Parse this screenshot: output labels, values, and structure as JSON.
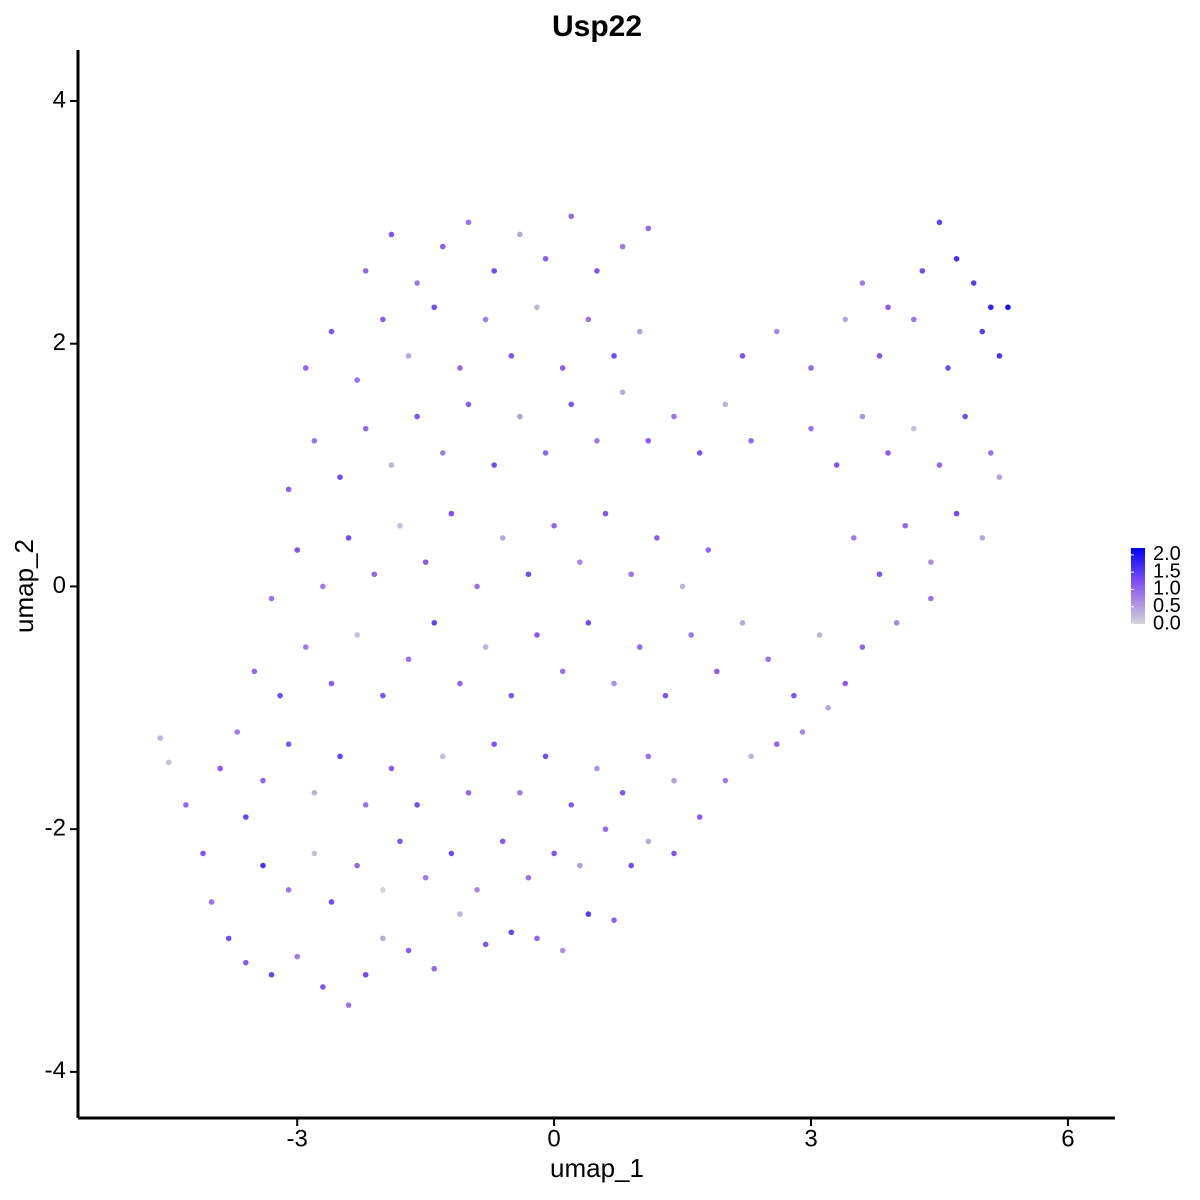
{
  "chart_data": {
    "type": "scatter",
    "title": "Usp22",
    "x_label": "umap_1",
    "y_label": "umap_2",
    "xlim": [
      -5.56,
      6.55
    ],
    "ylim": [
      -4.38,
      4.42
    ],
    "xticks": [
      -3,
      0,
      3,
      6
    ],
    "yticks": [
      -4,
      -2,
      0,
      2,
      4
    ],
    "color_scale": [
      "#d3d3d3",
      "#8c5cf2",
      "#0000ff"
    ],
    "clim": [
      0,
      2.2
    ],
    "colorbar_ticks": [
      {
        "value": 0,
        "label": "0.0"
      },
      {
        "value": 0.5,
        "label": "0.5"
      },
      {
        "value": 1,
        "label": "1.0"
      },
      {
        "value": 1.5,
        "label": "1.5"
      },
      {
        "value": 2,
        "label": "2.0"
      }
    ],
    "x": [
      -4.6,
      -4.5,
      -4.3,
      -4.1,
      -4.0,
      -3.8,
      -3.6,
      -3.3,
      -3.0,
      -2.7,
      -2.4,
      -2.2,
      -2.0,
      -1.7,
      -1.4,
      -1.1,
      -0.8,
      -0.5,
      -0.2,
      0.1,
      0.4,
      0.7,
      -3.9,
      -3.6,
      -3.4,
      -3.1,
      -2.8,
      -2.6,
      -2.3,
      -2.0,
      -1.8,
      -1.5,
      -1.2,
      -0.9,
      -0.6,
      -0.3,
      0.0,
      0.3,
      0.6,
      0.9,
      1.1,
      1.4,
      -3.7,
      -3.4,
      -3.1,
      -2.8,
      -2.5,
      -2.2,
      -1.9,
      -1.6,
      -1.3,
      -1.0,
      -0.7,
      -0.4,
      -0.1,
      0.2,
      0.5,
      0.8,
      1.1,
      1.4,
      1.7,
      2.0,
      2.3,
      2.6,
      2.9,
      3.2,
      3.4,
      -3.5,
      -3.2,
      -2.9,
      -2.6,
      -2.3,
      -2.0,
      -1.7,
      -1.4,
      -1.1,
      -0.8,
      -0.5,
      -0.2,
      0.1,
      0.4,
      0.7,
      1.0,
      1.3,
      1.6,
      1.9,
      2.2,
      2.5,
      2.8,
      3.1,
      3.6,
      4.0,
      4.4,
      -3.3,
      -3.0,
      -2.7,
      -2.4,
      -2.1,
      -1.8,
      -1.5,
      -1.2,
      -0.9,
      -0.6,
      -0.3,
      0.0,
      0.3,
      0.6,
      0.9,
      1.2,
      1.5,
      1.8,
      3.5,
      3.8,
      4.1,
      4.4,
      4.7,
      5.0,
      5.2,
      -3.1,
      -2.8,
      -2.5,
      -2.2,
      -1.9,
      -1.6,
      -1.3,
      -1.0,
      -0.7,
      -0.4,
      -0.1,
      0.2,
      0.5,
      0.8,
      1.1,
      1.4,
      1.7,
      2.0,
      2.3,
      3.0,
      3.3,
      3.6,
      3.9,
      4.2,
      4.5,
      4.8,
      5.1,
      -2.9,
      -2.6,
      -2.3,
      -2.0,
      -1.7,
      -1.4,
      -1.1,
      -0.8,
      -0.5,
      -0.2,
      0.1,
      0.4,
      0.7,
      1.0,
      2.2,
      2.6,
      3.0,
      3.4,
      3.8,
      4.2,
      4.6,
      5.0,
      5.3,
      5.2,
      -2.2,
      -1.9,
      -1.6,
      -1.3,
      -1.0,
      -0.7,
      -0.4,
      -0.1,
      0.2,
      0.5,
      0.8,
      1.1,
      3.6,
      3.9,
      4.3,
      4.5,
      4.7,
      4.9,
      5.1
    ],
    "y": [
      -1.25,
      -1.45,
      -1.8,
      -2.2,
      -2.6,
      -2.9,
      -3.1,
      -3.2,
      -3.05,
      -3.3,
      -3.45,
      -3.2,
      -2.9,
      -3.0,
      -3.15,
      -2.7,
      -2.95,
      -2.85,
      -2.9,
      -3.0,
      -2.7,
      -2.75,
      -1.5,
      -1.9,
      -2.3,
      -2.5,
      -2.2,
      -2.6,
      -2.3,
      -2.5,
      -2.1,
      -2.4,
      -2.2,
      -2.5,
      -2.1,
      -2.4,
      -2.2,
      -2.3,
      -2.0,
      -2.3,
      -2.1,
      -2.2,
      -1.2,
      -1.6,
      -1.3,
      -1.7,
      -1.4,
      -1.8,
      -1.5,
      -1.8,
      -1.4,
      -1.7,
      -1.3,
      -1.7,
      -1.4,
      -1.8,
      -1.5,
      -1.7,
      -1.4,
      -1.6,
      -1.9,
      -1.6,
      -1.4,
      -1.3,
      -1.2,
      -1.0,
      -0.8,
      -0.7,
      -0.9,
      -0.5,
      -0.8,
      -0.4,
      -0.9,
      -0.6,
      -0.3,
      -0.8,
      -0.5,
      -0.9,
      -0.4,
      -0.7,
      -0.3,
      -0.8,
      -0.5,
      -0.9,
      -0.4,
      -0.7,
      -0.3,
      -0.6,
      -0.9,
      -0.4,
      -0.5,
      -0.3,
      -0.1,
      -0.1,
      0.3,
      0.0,
      0.4,
      0.1,
      0.5,
      0.2,
      0.6,
      0.0,
      0.4,
      0.1,
      0.5,
      0.2,
      0.6,
      0.1,
      0.4,
      0.0,
      0.3,
      0.4,
      0.1,
      0.5,
      0.2,
      0.6,
      0.4,
      0.9,
      0.8,
      1.2,
      0.9,
      1.3,
      1.0,
      1.4,
      1.1,
      1.5,
      1.0,
      1.4,
      1.1,
      1.5,
      1.2,
      1.6,
      1.2,
      1.4,
      1.1,
      1.5,
      1.2,
      1.3,
      1.0,
      1.4,
      1.1,
      1.3,
      1.0,
      1.4,
      1.1,
      1.8,
      2.1,
      1.7,
      2.2,
      1.9,
      2.3,
      1.8,
      2.2,
      1.9,
      2.3,
      1.8,
      2.2,
      1.9,
      2.1,
      1.9,
      2.1,
      1.8,
      2.2,
      1.9,
      2.2,
      1.8,
      2.1,
      2.3,
      1.9,
      2.6,
      2.9,
      2.5,
      2.8,
      3.0,
      2.6,
      2.9,
      2.7,
      3.05,
      2.6,
      2.8,
      2.95,
      2.5,
      2.3,
      2.6,
      3.0,
      2.7,
      2.5,
      2.3
    ],
    "expression": [
      0.3,
      0.2,
      1.0,
      1.2,
      0.9,
      1.3,
      1.1,
      1.4,
      0.8,
      1.2,
      0.9,
      1.3,
      0.4,
      1.1,
      1.0,
      0.3,
      1.2,
      1.4,
      1.0,
      0.6,
      1.5,
      1.1,
      1.1,
      1.4,
      1.6,
      0.9,
      0.2,
      1.3,
      1.0,
      0.0,
      1.2,
      0.8,
      1.3,
      0.7,
      1.1,
      0.9,
      1.2,
      0.5,
      1.0,
      1.3,
      0.4,
      1.2,
      0.8,
      1.0,
      1.2,
      0.3,
      1.4,
      0.9,
      1.1,
      1.3,
      0.2,
      1.0,
      1.2,
      0.8,
      1.3,
      1.1,
      0.6,
      1.2,
      0.9,
      0.5,
      1.1,
      0.8,
      0.3,
      1.0,
      0.7,
      0.4,
      1.1,
      1.0,
      1.3,
      0.8,
      1.1,
      0.2,
      1.2,
      0.9,
      1.4,
      1.0,
      0.3,
      1.2,
      1.1,
      0.9,
      1.3,
      0.6,
      1.0,
      1.2,
      0.8,
      1.1,
      0.4,
      0.9,
      1.2,
      0.3,
      1.0,
      0.7,
      0.9,
      0.9,
      1.2,
      0.8,
      1.3,
      1.0,
      0.2,
      1.1,
      1.2,
      0.9,
      0.4,
      1.3,
      1.0,
      0.7,
      1.2,
      0.9,
      1.1,
      0.3,
      1.0,
      0.8,
      1.2,
      1.0,
      0.6,
      1.3,
      0.4,
      0.5,
      1.1,
      0.9,
      1.3,
      1.0,
      0.3,
      1.2,
      0.8,
      1.1,
      1.3,
      0.5,
      1.0,
      1.2,
      0.8,
      0.4,
      1.1,
      0.9,
      1.2,
      0.3,
      1.0,
      0.9,
      1.2,
      0.6,
      1.1,
      0.2,
      1.0,
      1.3,
      0.9,
      1.0,
      1.2,
      0.9,
      1.1,
      0.4,
      1.3,
      1.0,
      0.8,
      1.2,
      0.3,
      1.1,
      0.9,
      1.3,
      0.5,
      1.2,
      0.7,
      1.0,
      0.4,
      1.2,
      0.9,
      1.3,
      1.5,
      2.0,
      1.6,
      1.0,
      1.2,
      0.8,
      1.1,
      0.9,
      1.3,
      0.4,
      1.1,
      1.0,
      1.2,
      0.8,
      1.0,
      0.8,
      1.1,
      1.3,
      1.4,
      1.6,
      1.5,
      1.8
    ]
  }
}
